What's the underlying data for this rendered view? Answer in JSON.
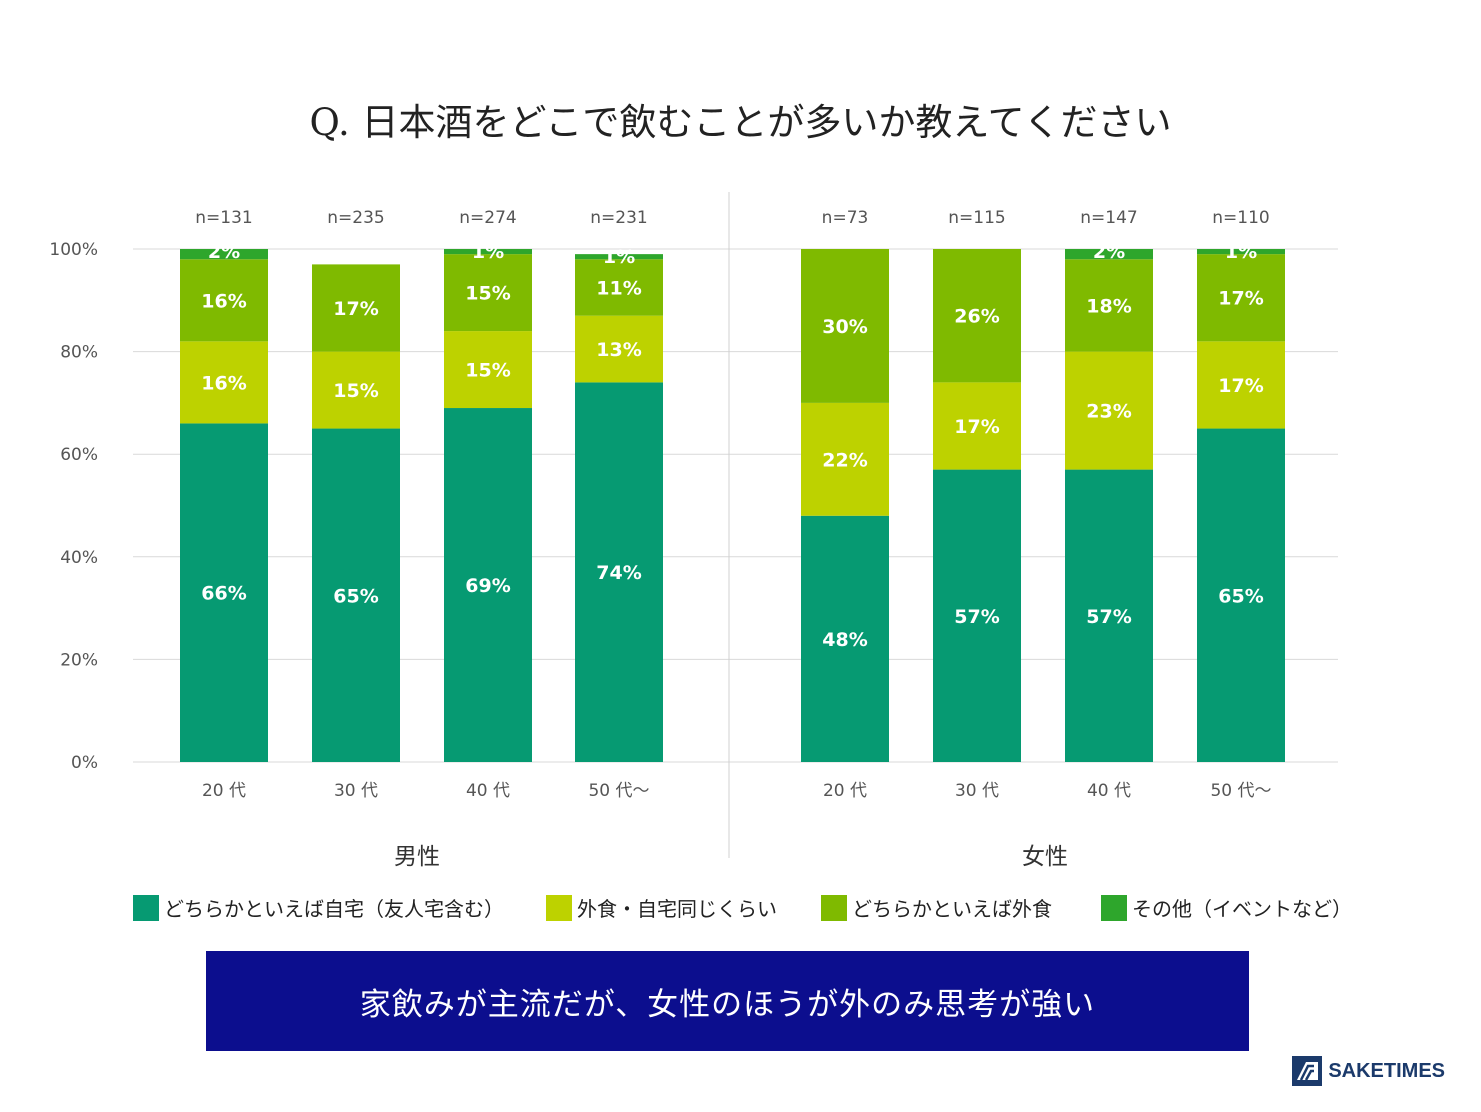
{
  "title": "Q. 日本酒をどこで飲むことが多いか教えてください",
  "chart_data": {
    "type": "bar",
    "stacked": true,
    "y_ticks": [
      "100%",
      "80%",
      "60%",
      "40%",
      "20%",
      "0%"
    ],
    "ylim": [
      0,
      100
    ],
    "series_names": [
      "どちらかといえば自宅（友人宅含む）",
      "外食・自宅同じくらい",
      "どちらかといえば外食",
      "その他（イベントなど）"
    ],
    "colors": [
      "#069a72",
      "#bdd200",
      "#7fba00",
      "#2ea62c"
    ],
    "groups": [
      {
        "name": "男性",
        "categories": [
          "20 代",
          "30 代",
          "40 代",
          "50 代〜"
        ],
        "n": [
          "n=131",
          "n=235",
          "n=274",
          "n=231"
        ],
        "values": [
          [
            66,
            16,
            16,
            2
          ],
          [
            65,
            15,
            17,
            0
          ],
          [
            69,
            15,
            15,
            1
          ],
          [
            74,
            13,
            11,
            1
          ]
        ],
        "labels": [
          [
            "66%",
            "16%",
            "16%",
            "2%"
          ],
          [
            "65%",
            "15%",
            "17%",
            ""
          ],
          [
            "69%",
            "15%",
            "15%",
            "1%"
          ],
          [
            "74%",
            "13%",
            "11%",
            "1%"
          ]
        ]
      },
      {
        "name": "女性",
        "categories": [
          "20 代",
          "30 代",
          "40 代",
          "50 代〜"
        ],
        "n": [
          "n=73",
          "n=115",
          "n=147",
          "n=110"
        ],
        "values": [
          [
            48,
            22,
            30,
            0
          ],
          [
            57,
            17,
            26,
            0
          ],
          [
            57,
            23,
            18,
            2
          ],
          [
            65,
            17,
            17,
            1
          ]
        ],
        "labels": [
          [
            "48%",
            "22%",
            "30%",
            ""
          ],
          [
            "57%",
            "17%",
            "26%",
            ""
          ],
          [
            "57%",
            "23%",
            "18%",
            "2%"
          ],
          [
            "65%",
            "17%",
            "17%",
            "1%"
          ]
        ]
      }
    ]
  },
  "legend": [
    {
      "label": "どちらかといえば自宅（友人宅含む）",
      "color": "#069a72"
    },
    {
      "label": "外食・自宅同じくらい",
      "color": "#bdd200"
    },
    {
      "label": "どちらかといえば外食",
      "color": "#7fba00"
    },
    {
      "label": "その他（イベントなど）",
      "color": "#2ea62c"
    }
  ],
  "banner": "家飲みが主流だが、女性のほうが外のみ思考が強い",
  "logo": "SAKETIMES"
}
